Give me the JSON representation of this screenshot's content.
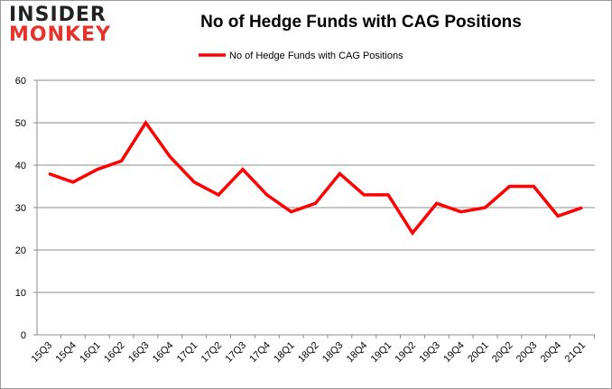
{
  "logo": {
    "line1": "INSIDER",
    "line2": "MONKEY"
  },
  "chart_data": {
    "type": "line",
    "title": "No of Hedge Funds with CAG Positions",
    "xlabel": "",
    "ylabel": "",
    "ylim": [
      0,
      60
    ],
    "yticks": [
      0,
      10,
      20,
      30,
      40,
      50,
      60
    ],
    "grid": true,
    "legend": "top-center",
    "categories": [
      "15Q3",
      "15Q4",
      "16Q1",
      "16Q2",
      "16Q3",
      "16Q4",
      "17Q1",
      "17Q2",
      "17Q3",
      "17Q4",
      "18Q1",
      "18Q2",
      "18Q3",
      "18Q4",
      "19Q1",
      "19Q2",
      "19Q3",
      "19Q4",
      "20Q1",
      "20Q2",
      "20Q3",
      "20Q4",
      "21Q1"
    ],
    "series": [
      {
        "name": "No of Hedge Funds with CAG Positions",
        "color": "#ff0000",
        "values": [
          38,
          36,
          39,
          41,
          50,
          42,
          36,
          33,
          39,
          33,
          29,
          31,
          38,
          33,
          33,
          24,
          31,
          29,
          30,
          35,
          35,
          28,
          30
        ]
      }
    ]
  }
}
